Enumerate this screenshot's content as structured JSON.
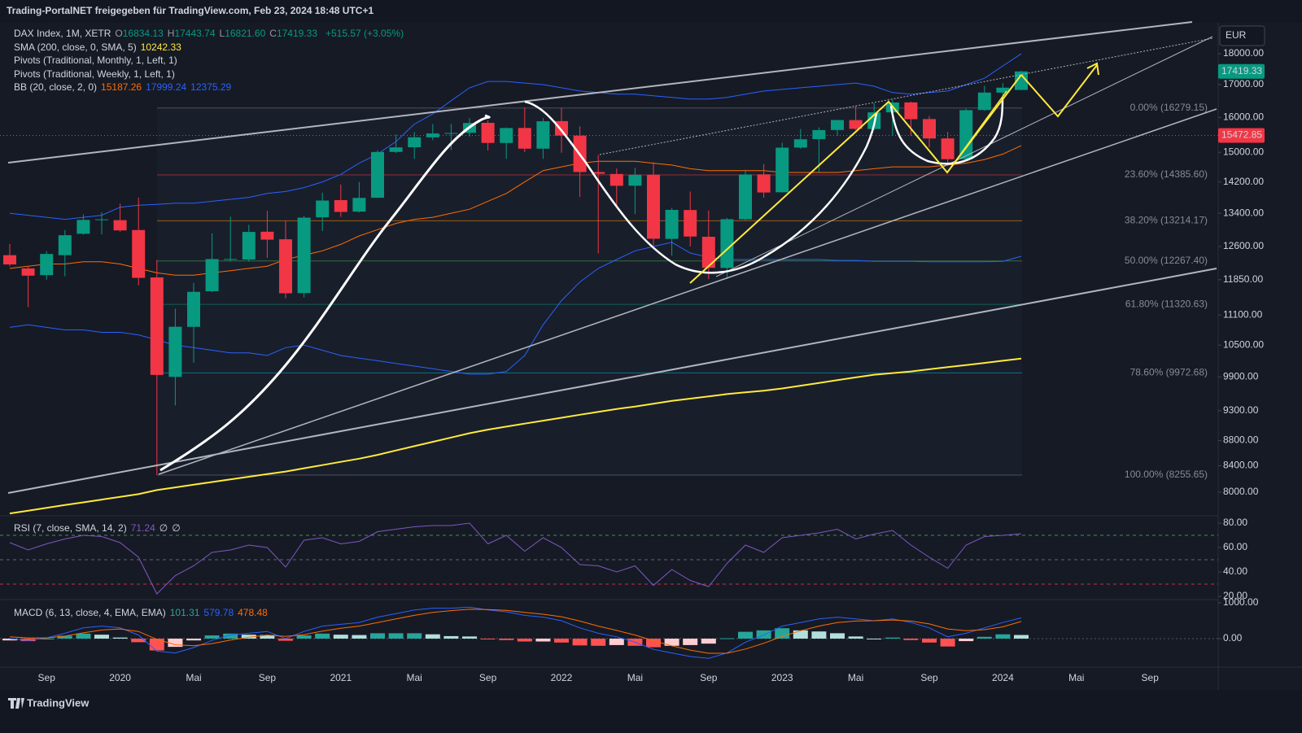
{
  "header": "Trading-PortalNET freigegeben für TradingView.com, Feb 23, 2024 18:48 UTC+1",
  "currency": "EUR",
  "footer": "TradingView",
  "chart_data": [
    {
      "type": "candlestick",
      "legend": {
        "symbol": "DAX Index, 1M, XETR",
        "ohlc": [
          {
            "label": "O",
            "value": "16834.13"
          },
          {
            "label": "H",
            "value": "17443.74"
          },
          {
            "label": "L",
            "value": "16821.60"
          },
          {
            "label": "C",
            "value": "17419.33"
          }
        ],
        "change": "+515.57 (+3.05%)"
      },
      "categories": [
        null,
        null,
        "Sep",
        null,
        null,
        null,
        "2020",
        null,
        null,
        null,
        "Mai",
        null,
        null,
        null,
        "Sep",
        null,
        null,
        null,
        "2021",
        null,
        null,
        null,
        "Mai",
        null,
        null,
        null,
        "Sep",
        null,
        null,
        null,
        "2022",
        null,
        null,
        null,
        "Mai",
        null,
        null,
        null,
        "Sep",
        null,
        null,
        null,
        "2023",
        null,
        null,
        null,
        "Mai",
        null,
        null,
        null,
        "Sep",
        null,
        null,
        null,
        "2024",
        null,
        null,
        null,
        "Mai",
        null,
        null,
        null,
        "Sep"
      ],
      "open": [
        12400,
        12100,
        11950,
        12400,
        12900,
        13240,
        13230,
        12990,
        11900,
        9900,
        10860,
        11600,
        12300,
        12300,
        12950,
        12770,
        11560,
        13300,
        13730,
        13440,
        13790,
        15010,
        15140,
        15420,
        15530,
        15550,
        15840,
        15260,
        15690,
        15100,
        15890,
        15470,
        14460,
        14410,
        14100,
        14390,
        12780,
        13480,
        12830,
        12110,
        13250,
        14400,
        13930,
        15130,
        15370,
        15630,
        15920,
        15660,
        16150,
        16450,
        15950,
        15390,
        14810,
        16220,
        16750,
        16834.13,
        null,
        null,
        null,
        null,
        null,
        null,
        null
      ],
      "high": [
        12660,
        12140,
        12494,
        12990,
        13374,
        13425,
        13640,
        13795,
        12290,
        11232,
        11781,
        12913,
        13314,
        13115,
        13460,
        13219,
        13337,
        13920,
        14131,
        14197,
        15059,
        15502,
        15569,
        15803,
        15810,
        15978,
        15912,
        15704,
        16290,
        15979,
        16285,
        15736,
        14925,
        14557,
        14575,
        14723,
        13536,
        13948,
        13470,
        13283,
        14526,
        14677,
        15269,
        15659,
        15706,
        15922,
        16331,
        16427,
        16528,
        16470,
        16043,
        15576,
        16261,
        16962,
        17050,
        17443.74,
        null,
        null,
        null,
        null,
        null,
        null,
        null
      ],
      "low": [
        12150,
        11266,
        11850,
        11925,
        12880,
        12886,
        12948,
        11724,
        8256,
        9389,
        10160,
        11586,
        12253,
        12253,
        12339,
        11450,
        11464,
        12967,
        13310,
        13420,
        13780,
        14980,
        14816,
        15339,
        15061,
        15444,
        15047,
        14819,
        15004,
        14818,
        14988,
        13807,
        12439,
        13534,
        13380,
        12618,
        12390,
        12600,
        11863,
        11869,
        13230,
        13792,
        13924,
        15100,
        14458,
        15462,
        15629,
        15629,
        15457,
        15469,
        15138,
        14630,
        14784,
        16196,
        16345,
        16821.6,
        null,
        null,
        null,
        null,
        null,
        null,
        null
      ],
      "close": [
        12189,
        11939,
        12428,
        12866,
        13236,
        13249,
        12981,
        11890,
        9936,
        10862,
        11587,
        12311,
        12313,
        12945,
        12761,
        11556,
        13291,
        13719,
        13433,
        13786,
        15008,
        15136,
        15421,
        15531,
        15544,
        15835,
        15261,
        15688,
        15100,
        15885,
        15471,
        14461,
        14415,
        14098,
        14388,
        12784,
        13484,
        12835,
        12114,
        13253,
        14397,
        13924,
        15128,
        15365,
        15629,
        15922,
        15664,
        16148,
        16447,
        15947,
        15387,
        14810,
        16215,
        16752,
        16904,
        17419.33,
        null,
        null,
        null,
        null,
        null,
        null,
        null
      ],
      "up_color": "#089981",
      "down_color": "#f23645",
      "log_scale": true,
      "ylim": [
        7680,
        19060
      ],
      "yticks": [
        {
          "value": 18000,
          "label": "18000.00"
        },
        {
          "value": 17000,
          "label": "17000.00"
        },
        {
          "value": 16000,
          "label": "16000.00"
        },
        {
          "value": 15000,
          "label": "15000.00"
        },
        {
          "value": 14200,
          "label": "14200.00"
        },
        {
          "value": 13400,
          "label": "13400.00"
        },
        {
          "value": 12600,
          "label": "12600.00"
        },
        {
          "value": 11850,
          "label": "11850.00"
        },
        {
          "value": 11100,
          "label": "11100.00"
        },
        {
          "value": 10500,
          "label": "10500.00"
        },
        {
          "value": 9900,
          "label": "9900.00"
        },
        {
          "value": 9300,
          "label": "9300.00"
        },
        {
          "value": 8800,
          "label": "8800.00"
        },
        {
          "value": 8400,
          "label": "8400.00"
        },
        {
          "value": 8000,
          "label": "8000.00"
        }
      ],
      "price_lines": [
        {
          "value": 17419.33,
          "color": "#089981",
          "line": false
        },
        {
          "value": 15472.85,
          "color": "#f23645",
          "line": true
        }
      ],
      "overlays": [
        {
          "name": "SMA (200, close, 0, SMA, 5)",
          "legend_values": [
            "10242.33"
          ],
          "legend_colors": [
            "#ffeb3b"
          ],
          "lines": [
            {
              "color": "#ffeb3b",
              "width": 2,
              "values": [
                7690,
                7730,
                7770,
                7810,
                7850,
                7890,
                7930,
                7970,
                8030,
                8070,
                8110,
                8150,
                8190,
                8230,
                8270,
                8310,
                8360,
                8410,
                8460,
                8510,
                8570,
                8640,
                8710,
                8780,
                8850,
                8920,
                8980,
                9030,
                9080,
                9130,
                9180,
                9230,
                9280,
                9330,
                9370,
                9420,
                9470,
                9510,
                9550,
                9590,
                9620,
                9650,
                9690,
                9740,
                9790,
                9840,
                9890,
                9940,
                9970,
                10000,
                10040,
                10080,
                10120,
                10160,
                10200,
                10242.33,
                null,
                null,
                null,
                null,
                null,
                null,
                null
              ]
            }
          ]
        },
        {
          "name": "Pivots (Traditional, Monthly, 1, Left, 1)"
        },
        {
          "name": "Pivots (Traditional, Weekly, 1, Left, 1)"
        },
        {
          "name": "BB (20, close, 2, 0)",
          "legend_values": [
            "15187.26",
            "17999.24",
            "12375.29"
          ],
          "legend_colors": [
            "#ff6d00",
            "#2962ff",
            "#2962ff"
          ],
          "lines": [
            {
              "color": "#ff6d00",
              "width": 1,
              "values": [
                12100,
                12150,
                12200,
                12200,
                12250,
                12250,
                12200,
                12100,
                12000,
                11950,
                11950,
                12000,
                12050,
                12100,
                12150,
                12300,
                12400,
                12500,
                12650,
                12850,
                13000,
                13150,
                13250,
                13300,
                13400,
                13500,
                13700,
                13900,
                14200,
                14500,
                14600,
                14700,
                14750,
                14750,
                14750,
                14700,
                14650,
                14550,
                14500,
                14500,
                14500,
                14500,
                14450,
                14450,
                14450,
                14450,
                14500,
                14550,
                14600,
                14600,
                14600,
                14650,
                14700,
                14800,
                14950,
                15187.26,
                null,
                null,
                null,
                null,
                null,
                null,
                null
              ]
            },
            {
              "color": "#2962ff",
              "width": 1,
              "values": [
                13400,
                13350,
                13300,
                13250,
                13300,
                13350,
                13550,
                13600,
                13620,
                13650,
                13650,
                13700,
                13750,
                13800,
                13900,
                13950,
                14050,
                14200,
                14400,
                14700,
                14950,
                15300,
                15800,
                16100,
                16500,
                16900,
                17100,
                17100,
                17050,
                17000,
                16900,
                16800,
                16750,
                16700,
                16700,
                16650,
                16600,
                16550,
                16550,
                16600,
                16700,
                16800,
                16850,
                16900,
                16950,
                17000,
                17050,
                16950,
                16750,
                16700,
                16750,
                16800,
                17000,
                17200,
                17600,
                17999.24,
                null,
                null,
                null,
                null,
                null,
                null,
                null
              ]
            },
            {
              "color": "#2962ff",
              "width": 1,
              "values": [
                10850,
                10900,
                10850,
                10800,
                10800,
                10750,
                10750,
                10700,
                10600,
                10500,
                10450,
                10400,
                10350,
                10350,
                10300,
                10450,
                10500,
                10400,
                10300,
                10250,
                10200,
                10150,
                10100,
                10050,
                10000,
                9950,
                9950,
                10000,
                10300,
                10900,
                11400,
                11800,
                12100,
                12300,
                12500,
                12600,
                12700,
                12450,
                12350,
                12300,
                12300,
                12300,
                12300,
                12300,
                12300,
                12280,
                12280,
                12260,
                12260,
                12260,
                12250,
                12250,
                12250,
                12250,
                12260,
                12375.29,
                null,
                null,
                null,
                null,
                null,
                null,
                null
              ]
            }
          ]
        }
      ],
      "fib_levels": [
        {
          "label": "0.00% (16279.15)",
          "value": 16279.15,
          "color": "#787b86"
        },
        {
          "label": "23.60% (14385.60)",
          "value": 14385.6,
          "color": "#f23645"
        },
        {
          "label": "38.20% (13214.17)",
          "value": 13214.17,
          "color": "#ff9800"
        },
        {
          "label": "50.00% (12267.40)",
          "value": 12267.4,
          "color": "#4caf50"
        },
        {
          "label": "61.80% (11320.63)",
          "value": 11320.63,
          "color": "#089981"
        },
        {
          "label": "78.60% (9972.68)",
          "value": 9972.68,
          "color": "#00bcd4"
        },
        {
          "label": "100.00% (8255.65)",
          "value": 8255.65,
          "color": "#787b86"
        }
      ]
    },
    {
      "type": "line",
      "legend": "RSI (7, close, SMA, 14, 2)",
      "legend_values": [
        "71.24",
        "∅",
        "∅"
      ],
      "legend_colors": [
        "#7e57c2",
        "#d1d4dc",
        "#d1d4dc"
      ],
      "color": "#7e57c2",
      "values": [
        64,
        58,
        63,
        67,
        70,
        69,
        64,
        52,
        22,
        37,
        45,
        56,
        58,
        62,
        60,
        44,
        66,
        68,
        63,
        65,
        73,
        75,
        77,
        78,
        78,
        80,
        63,
        70,
        57,
        68,
        60,
        46,
        45,
        40,
        45,
        29,
        42,
        33,
        28,
        47,
        62,
        56,
        68,
        70,
        72,
        75,
        67,
        71,
        74,
        62,
        52,
        43,
        62,
        69,
        70,
        71.24,
        null,
        null,
        null,
        null,
        null,
        null,
        null
      ],
      "ylim": [
        16.7,
        84
      ],
      "yticks": [
        {
          "value": 80,
          "label": "80.00"
        },
        {
          "value": 60,
          "label": "60.00"
        },
        {
          "value": 40,
          "label": "40.00"
        },
        {
          "value": 20,
          "label": "20.00"
        }
      ],
      "levels": [
        {
          "value": 70,
          "color": "#4caf50"
        },
        {
          "value": 50,
          "color": "#787b86"
        },
        {
          "value": 30,
          "color": "#f23645"
        }
      ]
    },
    {
      "type": "macd",
      "legend": "MACD (6, 13, close, 4, EMA, EMA)",
      "legend_values": [
        "101.31",
        "579.78",
        "478.48"
      ],
      "legend_colors": [
        "#26a69a",
        "#2962ff",
        "#ff6d00"
      ],
      "histogram": [
        -50,
        -70,
        0,
        80,
        140,
        110,
        30,
        -100,
        -330,
        -230,
        -50,
        90,
        140,
        110,
        100,
        -60,
        90,
        140,
        110,
        100,
        150,
        150,
        150,
        120,
        70,
        60,
        -10,
        -40,
        -80,
        -80,
        -110,
        -190,
        -200,
        -180,
        -200,
        -240,
        -200,
        -180,
        -140,
        10,
        190,
        230,
        290,
        230,
        200,
        150,
        60,
        0,
        30,
        -40,
        -110,
        -220,
        -70,
        50,
        120,
        101.31,
        null,
        null,
        null,
        null,
        null,
        null,
        null
      ],
      "macd": [
        0,
        -50,
        20,
        150,
        300,
        350,
        300,
        100,
        -350,
        -400,
        -250,
        -50,
        100,
        150,
        200,
        0,
        200,
        350,
        400,
        450,
        600,
        700,
        800,
        850,
        850,
        880,
        800,
        750,
        650,
        600,
        500,
        300,
        150,
        50,
        -100,
        -300,
        -400,
        -500,
        -550,
        -400,
        -100,
        100,
        350,
        450,
        550,
        600,
        550,
        500,
        550,
        450,
        300,
        50,
        150,
        300,
        450,
        579.78,
        null,
        null,
        null,
        null,
        null,
        null,
        null
      ],
      "signal": [
        50,
        20,
        20,
        70,
        160,
        240,
        270,
        200,
        -20,
        -170,
        -200,
        -140,
        -40,
        40,
        100,
        60,
        110,
        210,
        290,
        350,
        450,
        550,
        650,
        730,
        780,
        820,
        810,
        790,
        730,
        680,
        610,
        490,
        350,
        230,
        100,
        -60,
        -200,
        -320,
        -410,
        -410,
        -290,
        -130,
        60,
        220,
        350,
        450,
        490,
        500,
        520,
        490,
        410,
        270,
        220,
        250,
        330,
        478.48,
        null,
        null,
        null,
        null,
        null,
        null,
        null
      ],
      "macd_color": "#2962ff",
      "signal_color": "#ff6d00",
      "histogram_colors": [
        "#26a69a",
        "#b2dfdb",
        "#ffcdd2",
        "#ff5252"
      ],
      "ylim": [
        -909,
        1090
      ],
      "yticks": [
        {
          "value": 1000,
          "label": "1000.00"
        },
        {
          "value": 0,
          "label": "0.00"
        }
      ]
    }
  ]
}
